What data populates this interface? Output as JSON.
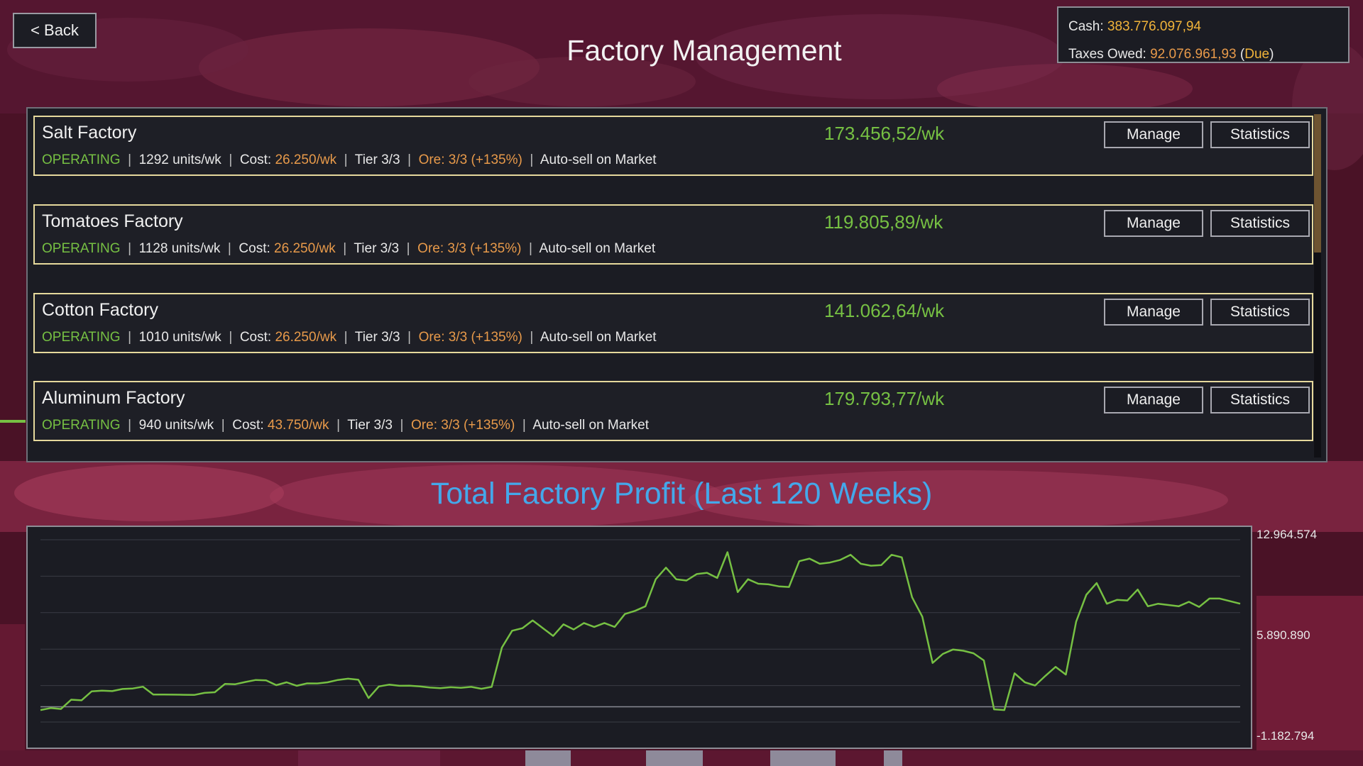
{
  "header": {
    "back_label": "< Back",
    "title": "Factory Management"
  },
  "finance": {
    "cash_label": "Cash:",
    "cash_value": "383.776.097,94",
    "taxes_label": "Taxes Owed:",
    "taxes_value": "92.076.961,93",
    "taxes_status": "Due",
    "open_paren": "(",
    "close_paren": ")"
  },
  "labels": {
    "sep": "|",
    "cost_label": "Cost:",
    "manage": "Manage",
    "statistics": "Statistics",
    "autosell": "Auto-sell on Market"
  },
  "factories": [
    {
      "name": "Salt Factory",
      "income": "173.456,52/wk",
      "status": "OPERATING",
      "units": "1292 units/wk",
      "cost": "26.250/wk",
      "tier": "Tier 3/3",
      "ore": "Ore: 3/3 (+135%)"
    },
    {
      "name": "Tomatoes Factory",
      "income": "119.805,89/wk",
      "status": "OPERATING",
      "units": "1128 units/wk",
      "cost": "26.250/wk",
      "tier": "Tier 3/3",
      "ore": "Ore: 3/3 (+135%)"
    },
    {
      "name": "Cotton Factory",
      "income": "141.062,64/wk",
      "status": "OPERATING",
      "units": "1010 units/wk",
      "cost": "26.250/wk",
      "tier": "Tier 3/3",
      "ore": "Ore: 3/3 (+135%)"
    },
    {
      "name": "Aluminum Factory",
      "income": "179.793,77/wk",
      "status": "OPERATING",
      "units": "940 units/wk",
      "cost": "43.750/wk",
      "tier": "Tier 3/3",
      "ore": "Ore: 3/3 (+135%)"
    }
  ],
  "chart_data": {
    "type": "line",
    "title": "Total Factory Profit (Last 120 Weeks)",
    "y_tick_labels": [
      "12.964.574",
      "5.890.890",
      "-1.182.794"
    ],
    "ylim": [
      -1182794,
      12964574
    ],
    "grid": true,
    "line_color": "#76c043",
    "series": [
      {
        "values": [
          -250000,
          -100000,
          -170000,
          550000,
          500000,
          1200000,
          1250000,
          1220000,
          1380000,
          1420000,
          1560000,
          950000,
          950000,
          940000,
          930000,
          920000,
          1080000,
          1130000,
          1780000,
          1750000,
          1930000,
          2080000,
          2050000,
          1680000,
          1900000,
          1630000,
          1820000,
          1810000,
          1900000,
          2080000,
          2180000,
          2100000,
          680000,
          1580000,
          1720000,
          1630000,
          1640000,
          1580000,
          1490000,
          1450000,
          1520000,
          1470000,
          1550000,
          1400000,
          1550000,
          4600000,
          5900000,
          6100000,
          6700000,
          6100000,
          5500000,
          6400000,
          6000000,
          6500000,
          6200000,
          6500000,
          6200000,
          7200000,
          7450000,
          7800000,
          9900000,
          10800000,
          9900000,
          9800000,
          10300000,
          10400000,
          10000000,
          12000000,
          8900000,
          9900000,
          9550000,
          9500000,
          9350000,
          9300000,
          11300000,
          11500000,
          11100000,
          11200000,
          11400000,
          11800000,
          11100000,
          10950000,
          11000000,
          11800000,
          11600000,
          8500000,
          7000000,
          3400000,
          4100000,
          4450000,
          4350000,
          4150000,
          3600000,
          -200000,
          -250000,
          2600000,
          1900000,
          1650000,
          2400000,
          3100000,
          2500000,
          6600000,
          8700000,
          9600000,
          8000000,
          8300000,
          8250000,
          9100000,
          7800000,
          8000000,
          7900000,
          7800000,
          8150000,
          7750000,
          8400000,
          8400000,
          8200000,
          8000000
        ]
      }
    ]
  }
}
